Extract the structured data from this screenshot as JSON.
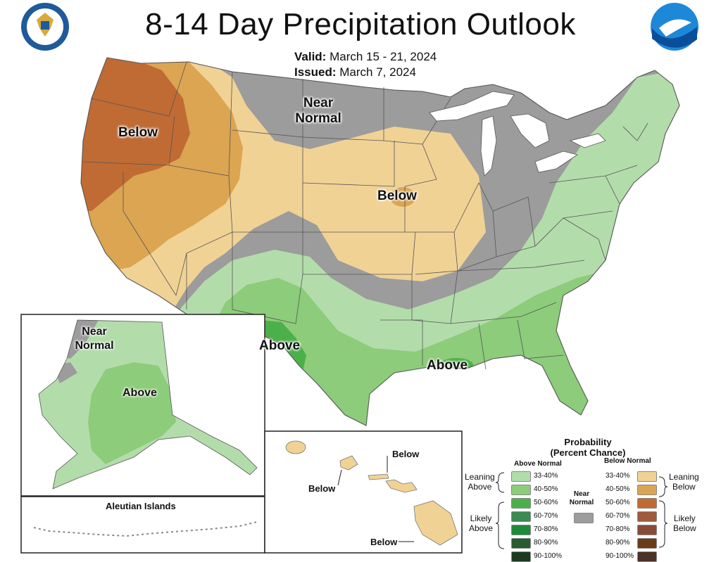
{
  "header": {
    "title": "8-14 Day Precipitation Outlook",
    "valid_label": "Valid:",
    "valid_value": "March 15 - 21, 2024",
    "issued_label": "Issued:",
    "issued_value": "March 7, 2024"
  },
  "logos": {
    "left": "department-of-commerce-seal",
    "right": "noaa-logo"
  },
  "map_labels": {
    "nw_below": "Below",
    "near_normal_line1": "Near",
    "near_normal_line2": "Normal",
    "plains_below": "Below",
    "sw_above": "Above",
    "gulf_above": "Above"
  },
  "alaska": {
    "near_line1": "Near",
    "near_line2": "Normal",
    "above": "Above",
    "aleutian": "Aleutian Islands"
  },
  "hawaii": {
    "below_a": "Below",
    "below_b": "Below",
    "below_c": "Below"
  },
  "legend": {
    "title_line1": "Probability",
    "title_line2": "(Percent Chance)",
    "above_header": "Above Normal",
    "below_header": "Below Normal",
    "near_header_line1": "Near",
    "near_header_line2": "Normal",
    "leaning_above_1": "Leaning",
    "leaning_above_2": "Above",
    "likely_above_1": "Likely",
    "likely_above_2": "Above",
    "leaning_below_1": "Leaning",
    "leaning_below_2": "Below",
    "likely_below_1": "Likely",
    "likely_below_2": "Below",
    "above_items": [
      {
        "label": "33-40%",
        "color": "#b3dcab"
      },
      {
        "label": "40-50%",
        "color": "#8ccc7a"
      },
      {
        "label": "50-60%",
        "color": "#4cb04a"
      },
      {
        "label": "60-70%",
        "color": "#3a8a52"
      },
      {
        "label": "70-80%",
        "color": "#1f8a3a"
      },
      {
        "label": "80-90%",
        "color": "#2a5a30"
      },
      {
        "label": "90-100%",
        "color": "#1d3a20"
      }
    ],
    "below_items": [
      {
        "label": "33-40%",
        "color": "#f1d295"
      },
      {
        "label": "40-50%",
        "color": "#dba552"
      },
      {
        "label": "50-60%",
        "color": "#c06b34"
      },
      {
        "label": "60-70%",
        "color": "#a05a3c"
      },
      {
        "label": "70-80%",
        "color": "#8a4a38"
      },
      {
        "label": "80-90%",
        "color": "#6a3c18"
      },
      {
        "label": "90-100%",
        "color": "#4a3226"
      }
    ],
    "near_color": "#9c9c9c"
  }
}
